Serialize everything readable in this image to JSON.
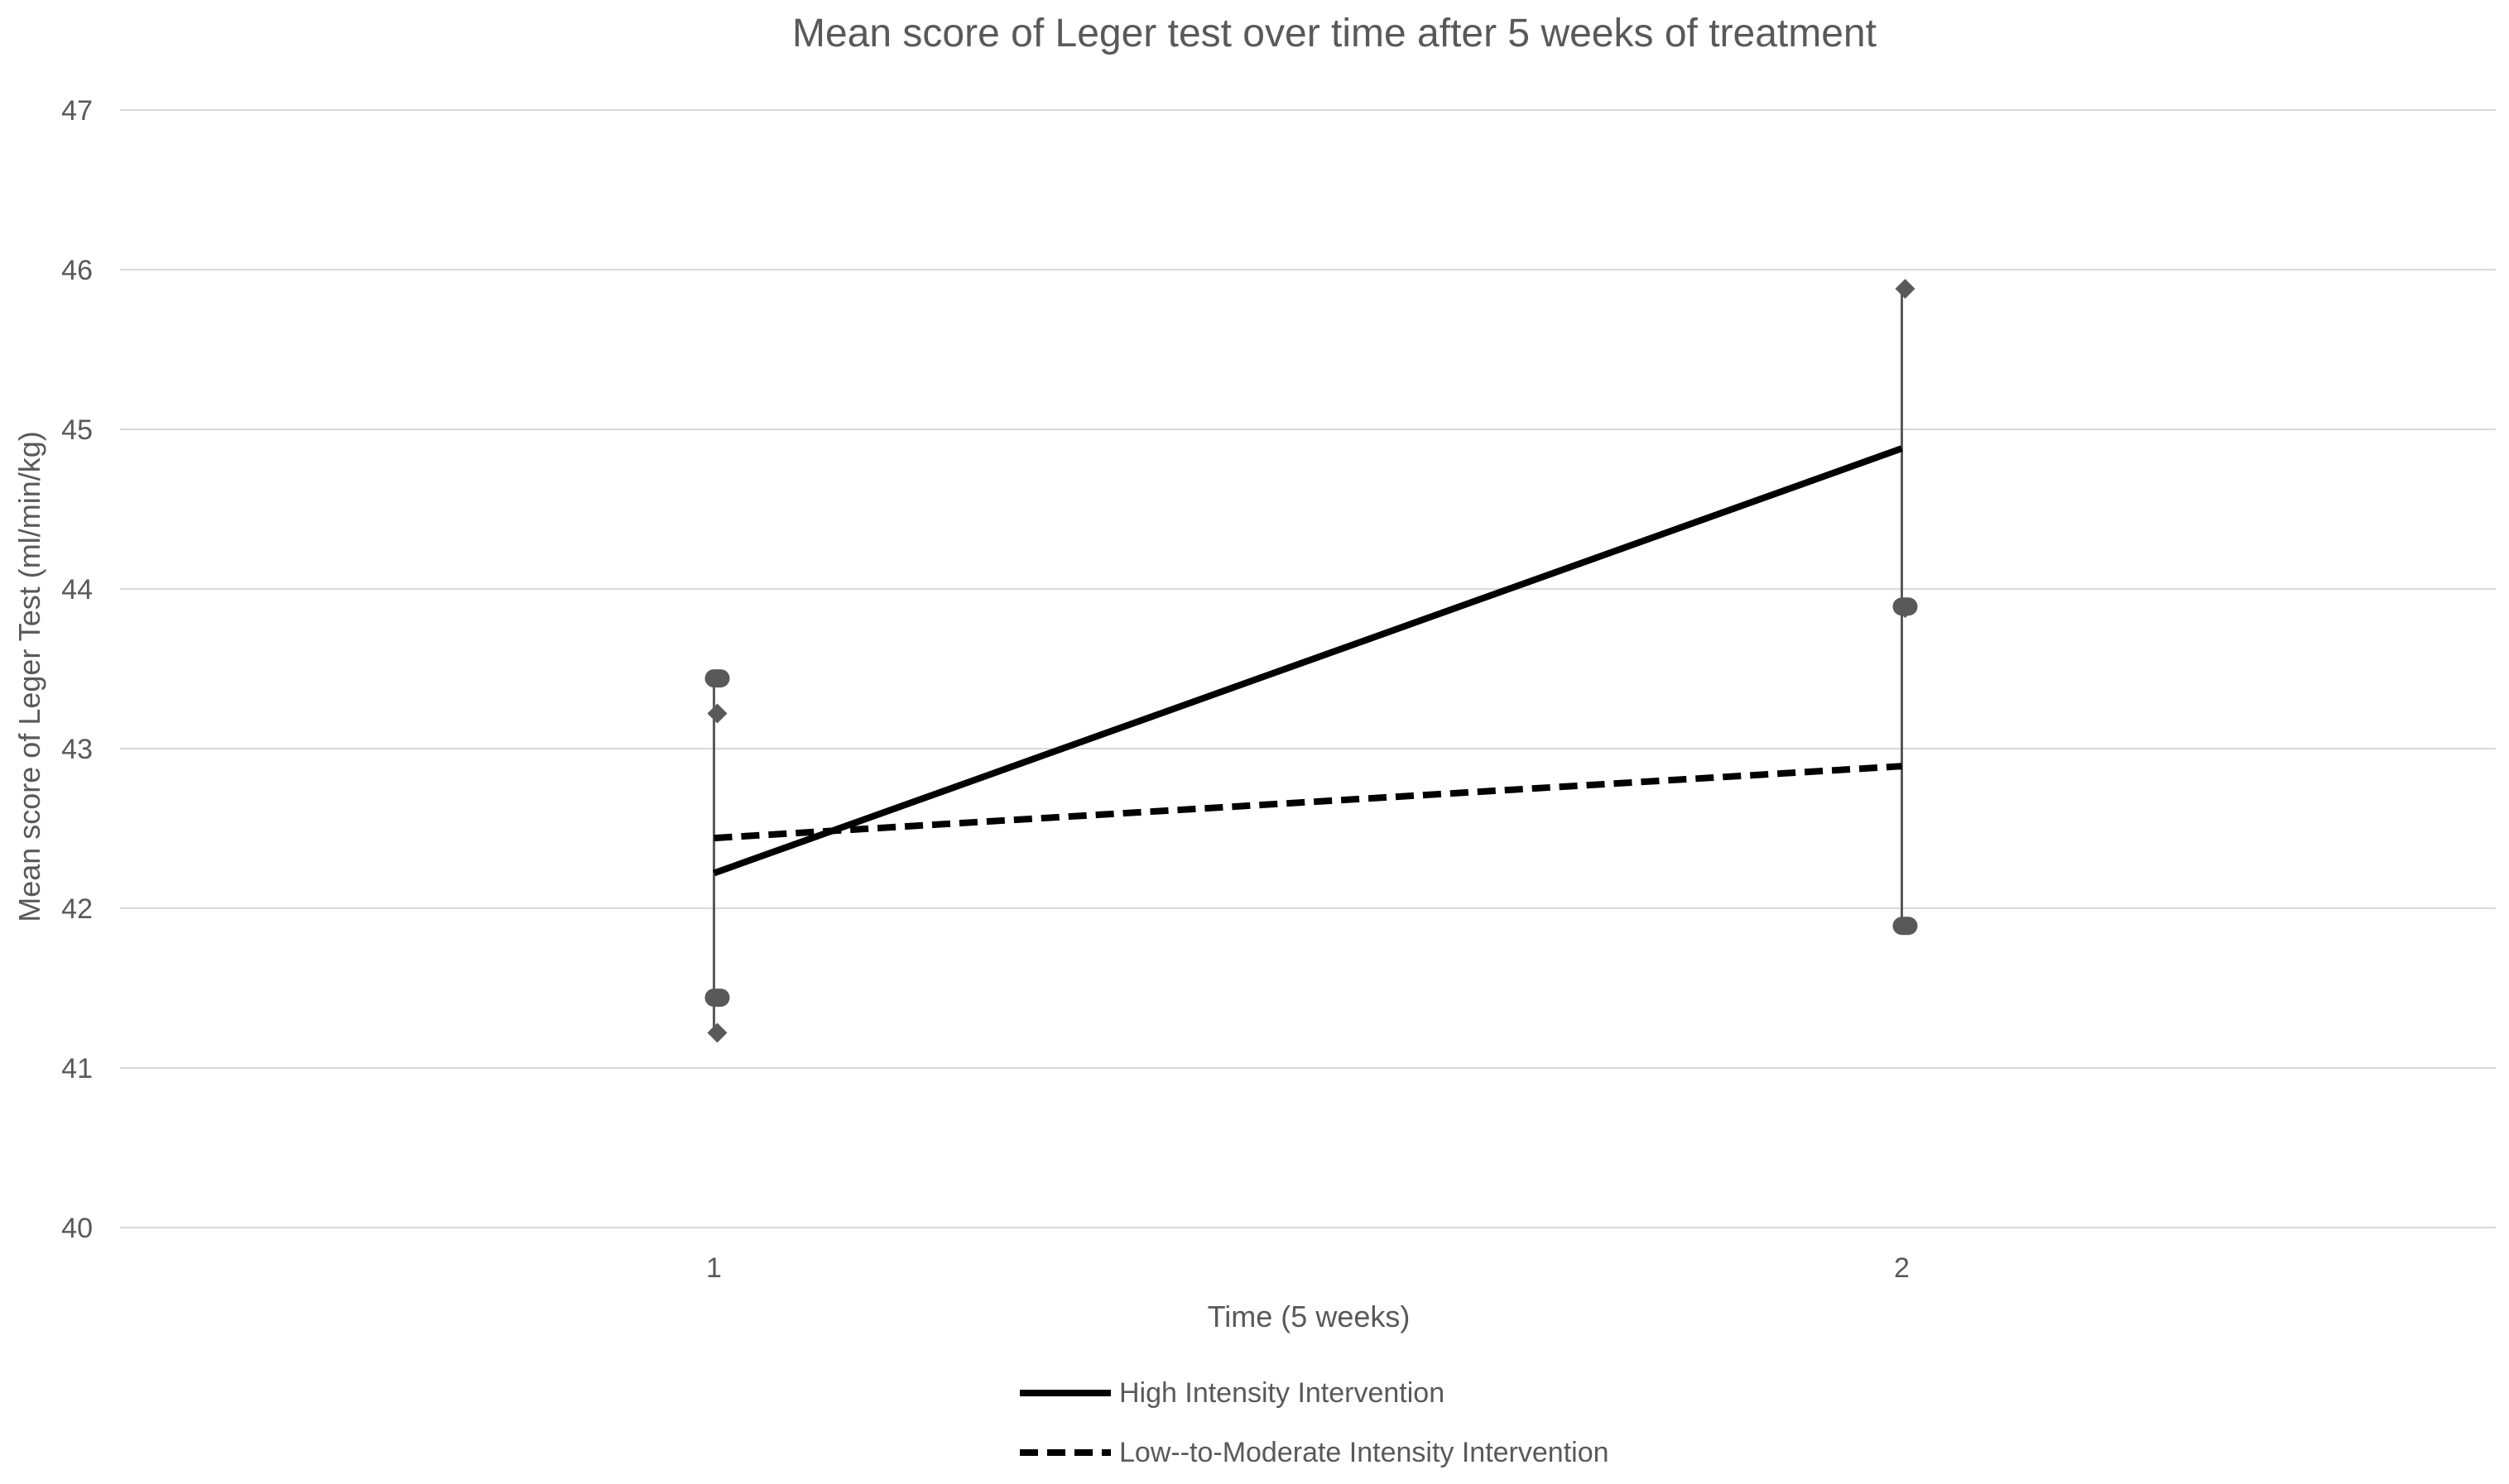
{
  "chart_data": {
    "type": "line",
    "title": "Mean score of Leger test over time after 5 weeks of treatment",
    "xlabel": "Time (5 weeks)",
    "ylabel": "Mean score of Leger Test (ml/min/kg)",
    "categories": [
      "1",
      "2"
    ],
    "ylim": [
      40,
      47
    ],
    "yticks": [
      "40",
      "41",
      "42",
      "43",
      "44",
      "45",
      "46",
      "47"
    ],
    "grid": true,
    "legend_position": "bottom",
    "series": [
      {
        "name": "High Intensity Intervention",
        "values": [
          42.22,
          44.88
        ],
        "style": "solid",
        "color": "#000000",
        "error_bars": {
          "marker": "diamond",
          "low": [
            41.22,
            43.88
          ],
          "high": [
            43.22,
            45.88
          ]
        }
      },
      {
        "name": "Low--to-Moderate Intensity Intervention",
        "values": [
          42.44,
          42.89
        ],
        "style": "dashed",
        "color": "#000000",
        "error_bars": {
          "marker": "circle",
          "low": [
            41.44,
            41.89
          ],
          "high": [
            43.44,
            43.89
          ]
        }
      }
    ],
    "colors": {
      "grid": "#d9d9d9",
      "axis_text": "#595959",
      "error_bar": "#595959"
    }
  }
}
